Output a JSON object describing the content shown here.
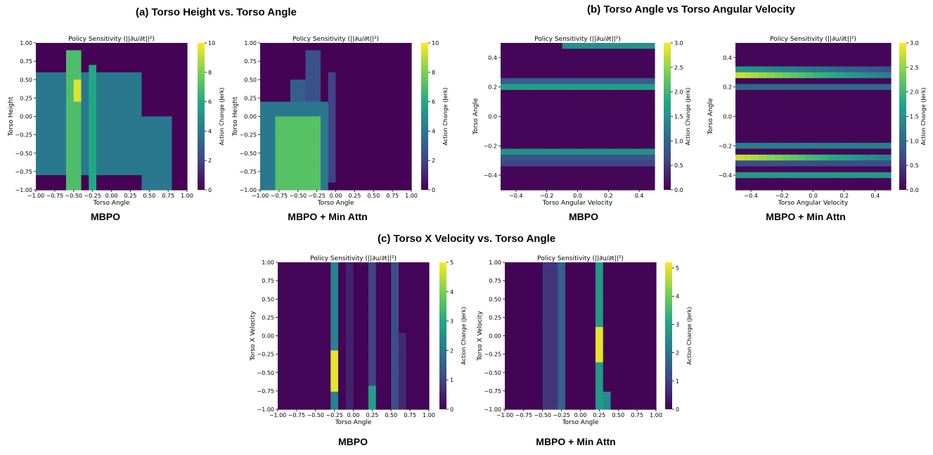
{
  "sections": [
    {
      "title": "(a) Torso Height vs. Torso Angle"
    },
    {
      "title": "(b) Torso Angle vs Torso Angular Velocity"
    },
    {
      "title": "(c) Torso X Velocity vs. Torso Angle"
    }
  ],
  "captions": [
    "MBPO",
    "MBPO + Min Attn",
    "MBPO",
    "MBPO + Min Attn",
    "MBPO",
    "MBPO + Min Attn"
  ],
  "colormap": {
    "name": "viridis",
    "stops": [
      "#440154",
      "#414487",
      "#2a788e",
      "#22a884",
      "#7ad151",
      "#fde725"
    ]
  },
  "chart_data": [
    {
      "type": "heatmap",
      "id": "a1",
      "title": "Policy Sensitivity (||∂u/∂t||²)",
      "xlabel": "Torso Angle",
      "ylabel": "Torso Height",
      "xlim": [
        -1.0,
        1.0
      ],
      "ylim": [
        -1.0,
        1.0
      ],
      "xticks": [
        "-1.00",
        "-0.75",
        "-0.50",
        "-0.25",
        "0.00",
        "0.25",
        "0.50",
        "0.75",
        "1.00"
      ],
      "yticks": [
        "-1.00",
        "-0.75",
        "-0.50",
        "-0.25",
        "0.00",
        "0.25",
        "0.50",
        "0.75",
        "1.00"
      ],
      "colorbar": {
        "label": "Action Change (Jerk)",
        "min": 0,
        "max": 10,
        "ticks": [
          "0",
          "2",
          "4",
          "6",
          "8",
          "10"
        ]
      },
      "grid_size": [
        20,
        20
      ],
      "regions": [
        {
          "x": [
            -0.95,
            0.45
          ],
          "y": [
            -0.75,
            0.6
          ],
          "value": 4.0
        },
        {
          "x": [
            -0.55,
            -0.4
          ],
          "y": [
            -1.0,
            0.85
          ],
          "value": 7.0
        },
        {
          "x": [
            -0.5,
            -0.4
          ],
          "y": [
            0.25,
            0.5
          ],
          "value": 9.5
        },
        {
          "x": [
            -0.25,
            -0.15
          ],
          "y": [
            -1.0,
            0.7
          ],
          "value": 6.0
        },
        {
          "x": [
            0.45,
            0.85
          ],
          "y": [
            -1.0,
            -0.05
          ],
          "value": 4.0
        }
      ]
    },
    {
      "type": "heatmap",
      "id": "a2",
      "title": "Policy Sensitivity (||∂u/∂t||²)",
      "xlabel": "Torso Angle",
      "ylabel": "Torso Height",
      "xlim": [
        -1.0,
        1.0
      ],
      "ylim": [
        -1.0,
        1.0
      ],
      "xticks": [
        "-1.00",
        "-0.75",
        "-0.50",
        "-0.25",
        "0.00",
        "0.25",
        "0.50",
        "0.75",
        "1.00"
      ],
      "yticks": [
        "-1.00",
        "-0.75",
        "-0.50",
        "-0.25",
        "0.00",
        "0.25",
        "0.50",
        "0.75",
        "1.00"
      ],
      "colorbar": {
        "label": "Action Change (Jerk)",
        "min": 0,
        "max": 10,
        "ticks": [
          "0",
          "2",
          "4",
          "6",
          "8",
          "10"
        ]
      },
      "grid_size": [
        20,
        20
      ],
      "regions": [
        {
          "x": [
            -1.0,
            -0.1
          ],
          "y": [
            -1.0,
            0.2
          ],
          "value": 4.0
        },
        {
          "x": [
            -0.75,
            -0.2
          ],
          "y": [
            -1.0,
            -0.05
          ],
          "value": 7.2
        },
        {
          "x": [
            -0.35,
            -0.15
          ],
          "y": [
            -0.6,
            0.9
          ],
          "value": 2.5
        },
        {
          "x": [
            -0.1,
            0.05
          ],
          "y": [
            -0.9,
            0.6
          ],
          "value": 2.0
        },
        {
          "x": [
            -0.6,
            -0.4
          ],
          "y": [
            0.1,
            0.5
          ],
          "value": 3.0
        }
      ]
    },
    {
      "type": "heatmap",
      "id": "b1",
      "title": "Policy Sensitivity (||∂u/∂t||²)",
      "xlabel": "Torso Angular Velocity",
      "ylabel": "Torso Angle",
      "xlim": [
        -0.5,
        0.5
      ],
      "ylim": [
        -0.5,
        0.5
      ],
      "xticks": [
        "-0.4",
        "-0.2",
        "0.0",
        "0.2",
        "0.4"
      ],
      "xtick_vals": [
        -0.4,
        -0.2,
        0.0,
        0.2,
        0.4
      ],
      "yticks": [
        "-0.4",
        "-0.2",
        "0.0",
        "0.2",
        "0.4"
      ],
      "ytick_vals": [
        -0.4,
        -0.2,
        0.0,
        0.2,
        0.4
      ],
      "colorbar": {
        "label": "Action Change (Jerk)",
        "min": 0,
        "max": 3.0,
        "ticks": [
          "0.0",
          "0.5",
          "1.0",
          "1.5",
          "2.0",
          "2.5",
          "3.0"
        ]
      },
      "grid_size": [
        20,
        25
      ],
      "row_bands": [
        {
          "y": [
            0.18,
            0.22
          ],
          "value": 1.7
        },
        {
          "y": [
            0.22,
            0.26
          ],
          "value": 0.9
        },
        {
          "y": [
            -0.26,
            -0.22
          ],
          "value": 1.5
        },
        {
          "y": [
            -0.3,
            -0.26
          ],
          "value": 0.8
        },
        {
          "y": [
            -0.34,
            -0.3
          ],
          "value": 0.6
        },
        {
          "y": [
            0.46,
            0.5
          ],
          "value": 1.5,
          "x": [
            -0.1,
            0.5
          ]
        }
      ]
    },
    {
      "type": "heatmap",
      "id": "b2",
      "title": "Policy Sensitivity (||∂u/∂t||²)",
      "xlabel": "Torso Angular Velocity",
      "ylabel": "Torso Angle",
      "xlim": [
        -0.5,
        0.5
      ],
      "ylim": [
        -0.5,
        0.5
      ],
      "xticks": [
        "-0.4",
        "-0.2",
        "0.0",
        "0.2",
        "0.4"
      ],
      "xtick_vals": [
        -0.4,
        -0.2,
        0.0,
        0.2,
        0.4
      ],
      "yticks": [
        "-0.4",
        "-0.2",
        "0.0",
        "0.2",
        "0.4"
      ],
      "ytick_vals": [
        -0.4,
        -0.2,
        0.0,
        0.2,
        0.4
      ],
      "colorbar": {
        "label": "Action Change (Jerk)",
        "min": 0,
        "max": 3.0,
        "ticks": [
          "0.0",
          "0.5",
          "1.0",
          "1.5",
          "2.0",
          "2.5",
          "3.0"
        ]
      },
      "grid_size": [
        20,
        25
      ],
      "row_bands": [
        {
          "y": [
            0.26,
            0.3
          ],
          "value": 2.8,
          "fade": true
        },
        {
          "y": [
            0.3,
            0.34
          ],
          "value": 1.6,
          "fade": true
        },
        {
          "y": [
            0.18,
            0.22
          ],
          "value": 1.0
        },
        {
          "y": [
            -0.3,
            -0.26
          ],
          "value": 2.8,
          "fade": true
        },
        {
          "y": [
            -0.22,
            -0.18
          ],
          "value": 1.3
        },
        {
          "y": [
            -0.42,
            -0.38
          ],
          "value": 1.6
        },
        {
          "y": [
            -0.34,
            -0.3
          ],
          "value": 0.7
        }
      ]
    },
    {
      "type": "heatmap",
      "id": "c1",
      "title": "Policy Sensitivity (||∂u/∂t||²)",
      "xlabel": "Torso Angle",
      "ylabel": "Torso X Velocity",
      "xlim": [
        -1.0,
        1.0
      ],
      "ylim": [
        -1.0,
        1.0
      ],
      "xticks": [
        "-1.00",
        "-0.75",
        "-0.50",
        "-0.25",
        "0.00",
        "0.25",
        "0.50",
        "0.75",
        "1.00"
      ],
      "yticks": [
        "-1.00",
        "-0.75",
        "-0.50",
        "-0.25",
        "0.00",
        "0.25",
        "0.50",
        "0.75",
        "1.00"
      ],
      "colorbar": {
        "label": "Action Change (Jerk)",
        "min": 0,
        "max": 5,
        "ticks": [
          "0",
          "1",
          "2",
          "3",
          "4",
          "5"
        ]
      },
      "grid_size": [
        20,
        25
      ],
      "col_bands": [
        {
          "x": [
            -0.3,
            -0.2
          ],
          "value": 2.2
        },
        {
          "x": [
            0.2,
            0.3
          ],
          "value": 1.0
        },
        {
          "x": [
            0.5,
            0.6
          ],
          "value": 1.2
        },
        {
          "x": [
            -0.05,
            0.05
          ],
          "value": 0.5
        },
        {
          "x": [
            0.6,
            0.7
          ],
          "value": 0.6,
          "y": [
            -1.0,
            0.0
          ]
        }
      ],
      "peaks": [
        {
          "x": [
            -0.3,
            -0.2
          ],
          "y": [
            -0.75,
            -0.2
          ],
          "value": 4.8
        },
        {
          "x": [
            0.25,
            0.35
          ],
          "y": [
            -1.0,
            -0.7
          ],
          "value": 2.8
        }
      ]
    },
    {
      "type": "heatmap",
      "id": "c2",
      "title": "Policy Sensitivity (||∂u/∂t||²)",
      "xlabel": "Torso Angle",
      "ylabel": "Torso X Velocity",
      "xlim": [
        -1.0,
        1.0
      ],
      "ylim": [
        -1.0,
        1.0
      ],
      "xticks": [
        "-1.00",
        "-0.75",
        "-0.50",
        "-0.25",
        "0.00",
        "0.25",
        "0.50",
        "0.75",
        "1.00"
      ],
      "yticks": [
        "-1.00",
        "-0.75",
        "-0.50",
        "-0.25",
        "0.00",
        "0.25",
        "0.50",
        "0.75",
        "1.00"
      ],
      "colorbar": {
        "label": "Action Change (Jerk)",
        "min": 0,
        "max": 5.2,
        "ticks": [
          "0",
          "1",
          "2",
          "3",
          "4",
          "5"
        ]
      },
      "grid_size": [
        20,
        25
      ],
      "col_bands": [
        {
          "x": [
            0.2,
            0.3
          ],
          "value": 2.8
        },
        {
          "x": [
            -0.3,
            -0.2
          ],
          "value": 1.6
        },
        {
          "x": [
            -0.45,
            -0.35
          ],
          "value": 0.8
        }
      ],
      "peaks": [
        {
          "x": [
            0.2,
            0.3
          ],
          "y": [
            -0.4,
            0.1
          ],
          "value": 5.0
        },
        {
          "x": [
            0.3,
            0.4
          ],
          "y": [
            -1.0,
            -0.8
          ],
          "value": 2.5
        }
      ]
    }
  ]
}
